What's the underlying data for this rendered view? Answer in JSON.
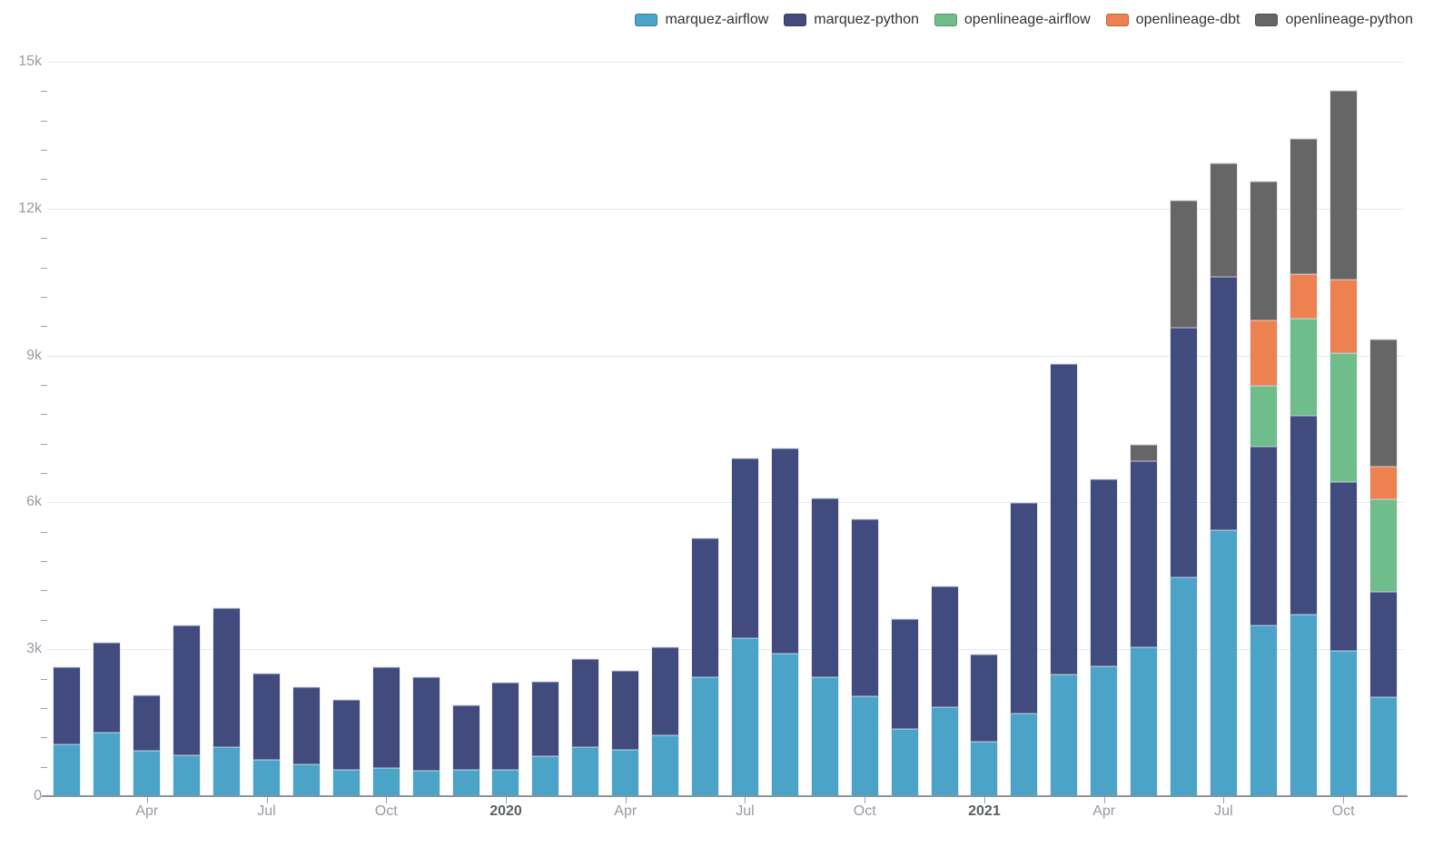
{
  "chart_data": {
    "type": "bar",
    "stacked": true,
    "title": "",
    "xlabel": "",
    "ylabel": "",
    "x": [
      "2019-02",
      "2019-03",
      "2019-04",
      "2019-05",
      "2019-06",
      "2019-07",
      "2019-08",
      "2019-09",
      "2019-10",
      "2019-11",
      "2019-12",
      "2020-01",
      "2020-02",
      "2020-03",
      "2020-04",
      "2020-05",
      "2020-06",
      "2020-07",
      "2020-08",
      "2020-09",
      "2020-10",
      "2020-11",
      "2020-12",
      "2021-01",
      "2021-02",
      "2021-03",
      "2021-04",
      "2021-05",
      "2021-06",
      "2021-07",
      "2021-08",
      "2021-09",
      "2021-10",
      "2021-11"
    ],
    "series": [
      {
        "name": "marquez-airflow",
        "color": "#4ba3c8",
        "values": [
          1050,
          1300,
          920,
          840,
          1010,
          750,
          650,
          530,
          580,
          520,
          540,
          540,
          810,
          1000,
          940,
          1240,
          2430,
          3230,
          2910,
          2430,
          2040,
          1370,
          1820,
          1120,
          1680,
          2490,
          2660,
          3040,
          4460,
          5440,
          3480,
          3700,
          2960,
          2020
        ]
      },
      {
        "name": "marquez-python",
        "color": "#424b7d",
        "values": [
          1580,
          1830,
          1130,
          2640,
          2820,
          1760,
          1570,
          1430,
          2060,
          1910,
          1310,
          1770,
          1520,
          1800,
          1610,
          1800,
          2840,
          3660,
          4190,
          3660,
          3610,
          2240,
          2460,
          1770,
          4310,
          6330,
          3820,
          3800,
          5110,
          5170,
          3660,
          4070,
          3460,
          2160
        ]
      },
      {
        "name": "openlineage-airflow",
        "color": "#70bd8c",
        "values": [
          0,
          0,
          0,
          0,
          0,
          0,
          0,
          0,
          0,
          0,
          0,
          0,
          0,
          0,
          0,
          0,
          0,
          0,
          0,
          0,
          0,
          0,
          0,
          0,
          0,
          0,
          0,
          0,
          0,
          0,
          1250,
          1980,
          2620,
          1890
        ]
      },
      {
        "name": "openlineage-dbt",
        "color": "#ee8150",
        "values": [
          0,
          0,
          0,
          0,
          0,
          0,
          0,
          0,
          0,
          0,
          0,
          0,
          0,
          0,
          0,
          0,
          0,
          0,
          0,
          0,
          0,
          0,
          0,
          0,
          0,
          0,
          0,
          0,
          0,
          0,
          1320,
          920,
          1510,
          670
        ]
      },
      {
        "name": "openlineage-python",
        "color": "#666666",
        "values": [
          0,
          0,
          0,
          0,
          0,
          0,
          0,
          0,
          0,
          0,
          0,
          0,
          0,
          0,
          0,
          0,
          0,
          0,
          0,
          0,
          0,
          0,
          0,
          0,
          0,
          0,
          0,
          340,
          2600,
          2320,
          2850,
          2760,
          3850,
          2590
        ]
      }
    ],
    "ylim": [
      0,
      15000
    ],
    "y_major_ticks": [
      0,
      3000,
      6000,
      9000,
      12000,
      15000
    ],
    "y_tick_labels": [
      "0",
      "3k",
      "6k",
      "9k",
      "12k",
      "15k"
    ],
    "y_minor_interval": 600,
    "x_tick_labels": [
      {
        "index": 2,
        "label": "Apr",
        "bold": false
      },
      {
        "index": 5,
        "label": "Jul",
        "bold": false
      },
      {
        "index": 8,
        "label": "Oct",
        "bold": false
      },
      {
        "index": 11,
        "label": "2020",
        "bold": true
      },
      {
        "index": 14,
        "label": "Apr",
        "bold": false
      },
      {
        "index": 17,
        "label": "Jul",
        "bold": false
      },
      {
        "index": 20,
        "label": "Oct",
        "bold": false
      },
      {
        "index": 23,
        "label": "2021",
        "bold": true
      },
      {
        "index": 26,
        "label": "Apr",
        "bold": false
      },
      {
        "index": 29,
        "label": "Jul",
        "bold": false
      },
      {
        "index": 32,
        "label": "Oct",
        "bold": false
      }
    ],
    "grid": "horizontal-major-lines",
    "legend_position": "top-right",
    "legend": [
      "marquez-airflow",
      "marquez-python",
      "openlineage-airflow",
      "openlineage-dbt",
      "openlineage-python"
    ]
  }
}
